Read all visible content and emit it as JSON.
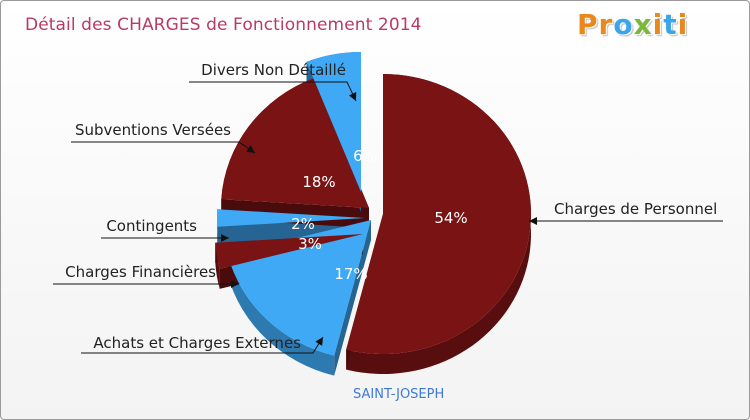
{
  "title": "Détail des CHARGES de Fonctionnement 2014",
  "logo": {
    "letters": [
      "P",
      "r",
      "o",
      "x",
      "i",
      "t",
      "i"
    ],
    "colors": [
      "#e8891d",
      "#e8891d",
      "#3aa5e8",
      "#79b83a",
      "#e8891d",
      "#3aa5e8",
      "#e8891d"
    ]
  },
  "town": "SAINT-JOSEPH",
  "chart_data": {
    "type": "pie",
    "title": "Détail des CHARGES de Fonctionnement 2014",
    "subtitle": "SAINT-JOSEPH",
    "unit": "%",
    "slices": [
      {
        "label": "Charges de Personnel",
        "value": 54,
        "pct_label": "54%",
        "color": "#7a1313"
      },
      {
        "label": "Achats et Charges Externes",
        "value": 17,
        "pct_label": "17%",
        "color": "#3fa9f5"
      },
      {
        "label": "Charges Financières",
        "value": 3,
        "pct_label": "3%",
        "color": "#7a1313"
      },
      {
        "label": "Contingents",
        "value": 2,
        "pct_label": "2%",
        "color": "#3fa9f5"
      },
      {
        "label": "Subventions Versées",
        "value": 18,
        "pct_label": "18%",
        "color": "#7a1313"
      },
      {
        "label": "Divers Non Détaillé",
        "value": 6,
        "pct_label": "6%",
        "color": "#3fa9f5"
      }
    ]
  }
}
